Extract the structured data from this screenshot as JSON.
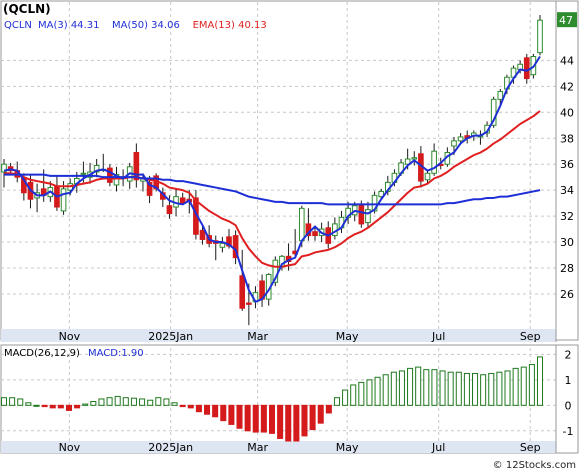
{
  "colors": {
    "up": "#2e8b2e",
    "down": "#d41a1a",
    "ma3": "#1f2fd6",
    "ma50": "#1f2fd6",
    "ema13": "#e02020",
    "legend_text": "#1f2fd6",
    "grid": "#c8c8c8",
    "axis_band": "#dde6f2",
    "macd_up": "#1e7a1e",
    "macd_down": "#d41a1a",
    "last_price_box": "#2e8b2e"
  },
  "chart_data": [
    {
      "type": "candlestick",
      "title": "(QCLN)",
      "legend": [
        {
          "label": "QCLN",
          "color": "#1f2fd6"
        },
        {
          "label": "MA(3)",
          "value": "44.31",
          "color": "#1f2fd6"
        },
        {
          "label": "MA(50)",
          "value": "34.06",
          "color": "#1f2fd6"
        },
        {
          "label": "EMA(13)",
          "value": "40.13",
          "color": "#e02020"
        }
      ],
      "ylim": [
        23.3,
        48.5
      ],
      "y_ticks": [
        26,
        28,
        30,
        32,
        34,
        36,
        38,
        40,
        42,
        44
      ],
      "x_ticks": [
        "Nov",
        "2025Jan",
        "Mar",
        "May",
        "Jul",
        "Sep"
      ],
      "last_price": "47",
      "grid": true,
      "candles": [
        {
          "o": 35.4,
          "h": 36.4,
          "l": 34.2,
          "c": 36.0
        },
        {
          "o": 35.8,
          "h": 36.1,
          "l": 35.3,
          "c": 35.5
        },
        {
          "o": 35.5,
          "h": 36.2,
          "l": 34.6,
          "c": 35.0
        },
        {
          "o": 34.9,
          "h": 35.3,
          "l": 33.2,
          "c": 33.8
        },
        {
          "o": 34.6,
          "h": 35.2,
          "l": 32.6,
          "c": 33.3
        },
        {
          "o": 33.4,
          "h": 34.5,
          "l": 32.3,
          "c": 33.8
        },
        {
          "o": 34.1,
          "h": 35.6,
          "l": 33.1,
          "c": 33.6
        },
        {
          "o": 33.5,
          "h": 34.7,
          "l": 33.1,
          "c": 34.2
        },
        {
          "o": 34.3,
          "h": 35.1,
          "l": 32.4,
          "c": 32.7
        },
        {
          "o": 32.4,
          "h": 34.7,
          "l": 32.1,
          "c": 34.1
        },
        {
          "o": 34.0,
          "h": 34.9,
          "l": 33.6,
          "c": 34.5
        },
        {
          "o": 34.5,
          "h": 35.4,
          "l": 33.8,
          "c": 34.9
        },
        {
          "o": 35.3,
          "h": 36.2,
          "l": 34.6,
          "c": 35.3
        },
        {
          "o": 35.0,
          "h": 36.1,
          "l": 34.5,
          "c": 35.4
        },
        {
          "o": 35.4,
          "h": 36.4,
          "l": 35.0,
          "c": 35.9
        },
        {
          "o": 35.6,
          "h": 36.8,
          "l": 35.4,
          "c": 35.6
        },
        {
          "o": 35.7,
          "h": 36.0,
          "l": 34.3,
          "c": 34.6
        },
        {
          "o": 34.4,
          "h": 35.8,
          "l": 33.9,
          "c": 35.2
        },
        {
          "o": 35.0,
          "h": 35.6,
          "l": 34.3,
          "c": 34.9
        },
        {
          "o": 34.7,
          "h": 36.1,
          "l": 34.1,
          "c": 35.8
        },
        {
          "o": 36.9,
          "h": 37.6,
          "l": 34.2,
          "c": 34.8
        },
        {
          "o": 34.7,
          "h": 35.3,
          "l": 33.9,
          "c": 34.9
        },
        {
          "o": 34.6,
          "h": 35.1,
          "l": 33.0,
          "c": 33.6
        },
        {
          "o": 35.1,
          "h": 35.3,
          "l": 33.9,
          "c": 34.1
        },
        {
          "o": 33.8,
          "h": 34.2,
          "l": 32.7,
          "c": 33.3
        },
        {
          "o": 32.8,
          "h": 33.6,
          "l": 31.8,
          "c": 32.2
        },
        {
          "o": 32.7,
          "h": 34.1,
          "l": 32.0,
          "c": 33.5
        },
        {
          "o": 33.4,
          "h": 33.8,
          "l": 32.9,
          "c": 33.0
        },
        {
          "o": 33.3,
          "h": 34.0,
          "l": 32.2,
          "c": 33.1
        },
        {
          "o": 33.4,
          "h": 34.0,
          "l": 30.2,
          "c": 30.6
        },
        {
          "o": 30.9,
          "h": 31.4,
          "l": 29.8,
          "c": 30.2
        },
        {
          "o": 30.5,
          "h": 31.3,
          "l": 29.6,
          "c": 29.9
        },
        {
          "o": 30.1,
          "h": 30.5,
          "l": 28.6,
          "c": 29.9
        },
        {
          "o": 29.6,
          "h": 30.4,
          "l": 29.2,
          "c": 29.9
        },
        {
          "o": 30.4,
          "h": 31.0,
          "l": 29.5,
          "c": 29.7
        },
        {
          "o": 30.5,
          "h": 30.9,
          "l": 28.3,
          "c": 28.8
        },
        {
          "o": 27.4,
          "h": 29.4,
          "l": 24.7,
          "c": 24.9
        },
        {
          "o": 25.3,
          "h": 26.8,
          "l": 23.6,
          "c": 25.2
        },
        {
          "o": 25.4,
          "h": 26.6,
          "l": 24.9,
          "c": 26.1
        },
        {
          "o": 27.0,
          "h": 27.5,
          "l": 25.0,
          "c": 25.6
        },
        {
          "o": 25.6,
          "h": 27.6,
          "l": 25.1,
          "c": 27.5
        },
        {
          "o": 26.9,
          "h": 28.9,
          "l": 26.6,
          "c": 28.6
        },
        {
          "o": 28.1,
          "h": 29.0,
          "l": 27.8,
          "c": 28.9
        },
        {
          "o": 28.9,
          "h": 29.9,
          "l": 27.8,
          "c": 28.5
        },
        {
          "o": 29.3,
          "h": 31.0,
          "l": 28.9,
          "c": 29.1
        },
        {
          "o": 30.1,
          "h": 32.8,
          "l": 29.6,
          "c": 32.6
        },
        {
          "o": 31.4,
          "h": 32.6,
          "l": 30.1,
          "c": 30.5
        },
        {
          "o": 30.8,
          "h": 31.1,
          "l": 30.1,
          "c": 30.5
        },
        {
          "o": 30.5,
          "h": 31.5,
          "l": 30.0,
          "c": 31.0
        },
        {
          "o": 31.1,
          "h": 31.6,
          "l": 29.5,
          "c": 29.9
        },
        {
          "o": 30.5,
          "h": 31.9,
          "l": 30.2,
          "c": 31.4
        },
        {
          "o": 31.1,
          "h": 32.4,
          "l": 30.7,
          "c": 31.9
        },
        {
          "o": 31.9,
          "h": 33.1,
          "l": 31.4,
          "c": 32.6
        },
        {
          "o": 32.1,
          "h": 33.1,
          "l": 31.6,
          "c": 32.8
        },
        {
          "o": 32.9,
          "h": 33.2,
          "l": 31.1,
          "c": 31.4
        },
        {
          "o": 31.5,
          "h": 33.1,
          "l": 31.1,
          "c": 32.5
        },
        {
          "o": 32.4,
          "h": 33.9,
          "l": 32.2,
          "c": 33.6
        },
        {
          "o": 33.5,
          "h": 34.1,
          "l": 33.2,
          "c": 33.9
        },
        {
          "o": 33.9,
          "h": 35.1,
          "l": 33.6,
          "c": 34.6
        },
        {
          "o": 34.6,
          "h": 35.6,
          "l": 34.3,
          "c": 35.3
        },
        {
          "o": 35.3,
          "h": 36.4,
          "l": 35.1,
          "c": 36.1
        },
        {
          "o": 36.0,
          "h": 37.2,
          "l": 35.6,
          "c": 36.4
        },
        {
          "o": 36.4,
          "h": 37.0,
          "l": 35.9,
          "c": 36.5
        },
        {
          "o": 36.8,
          "h": 37.4,
          "l": 34.2,
          "c": 34.7
        },
        {
          "o": 34.8,
          "h": 35.6,
          "l": 34.5,
          "c": 35.3
        },
        {
          "o": 35.3,
          "h": 37.6,
          "l": 35.1,
          "c": 37.0
        },
        {
          "o": 36.0,
          "h": 36.5,
          "l": 35.6,
          "c": 35.9
        },
        {
          "o": 36.0,
          "h": 37.3,
          "l": 35.8,
          "c": 36.9
        },
        {
          "o": 37.4,
          "h": 38.1,
          "l": 36.7,
          "c": 37.8
        },
        {
          "o": 37.8,
          "h": 38.4,
          "l": 37.5,
          "c": 38.1
        },
        {
          "o": 38.2,
          "h": 38.6,
          "l": 37.6,
          "c": 38.0
        },
        {
          "o": 38.2,
          "h": 38.6,
          "l": 37.8,
          "c": 38.4
        },
        {
          "o": 38.1,
          "h": 38.6,
          "l": 37.5,
          "c": 38.2
        },
        {
          "o": 38.4,
          "h": 39.3,
          "l": 38.1,
          "c": 39.0
        },
        {
          "o": 39.0,
          "h": 41.2,
          "l": 38.8,
          "c": 41.0
        },
        {
          "o": 41.0,
          "h": 41.8,
          "l": 40.5,
          "c": 41.6
        },
        {
          "o": 41.8,
          "h": 42.9,
          "l": 41.4,
          "c": 42.7
        },
        {
          "o": 42.7,
          "h": 43.6,
          "l": 42.2,
          "c": 43.4
        },
        {
          "o": 43.3,
          "h": 44.0,
          "l": 43.0,
          "c": 43.7
        },
        {
          "o": 44.2,
          "h": 44.5,
          "l": 42.2,
          "c": 42.6
        },
        {
          "o": 42.9,
          "h": 44.5,
          "l": 42.6,
          "c": 44.3
        },
        {
          "o": 44.6,
          "h": 47.5,
          "l": 44.4,
          "c": 47.1
        }
      ],
      "ema13": [
        35.3,
        35.3,
        35.2,
        35.0,
        34.8,
        34.7,
        34.6,
        34.5,
        34.3,
        34.3,
        34.3,
        34.4,
        34.5,
        34.6,
        34.8,
        34.9,
        34.9,
        34.9,
        34.9,
        35.0,
        35.0,
        34.9,
        34.8,
        34.7,
        34.5,
        34.2,
        34.1,
        34.0,
        33.8,
        33.2,
        32.8,
        32.4,
        32.1,
        31.8,
        31.6,
        31.3,
        30.3,
        29.5,
        28.9,
        28.4,
        28.2,
        28.1,
        28.1,
        28.2,
        28.3,
        28.9,
        29.0,
        29.2,
        29.3,
        29.4,
        29.6,
        29.9,
        30.3,
        30.6,
        30.8,
        31.1,
        31.5,
        31.9,
        32.3,
        32.8,
        33.3,
        33.8,
        34.2,
        34.3,
        34.5,
        34.9,
        35.1,
        35.4,
        35.8,
        36.1,
        36.4,
        36.7,
        36.9,
        37.2,
        37.6,
        37.9,
        38.3,
        38.7,
        39.1,
        39.4,
        39.7,
        40.1
      ],
      "ma50": [
        35.2,
        35.2,
        35.2,
        35.2,
        35.2,
        35.2,
        35.2,
        35.1,
        35.1,
        35.1,
        35.1,
        35.1,
        35.1,
        35.1,
        35.1,
        35.0,
        35.0,
        35.0,
        35.0,
        35.0,
        35.0,
        34.9,
        34.9,
        34.9,
        34.8,
        34.8,
        34.7,
        34.7,
        34.6,
        34.5,
        34.4,
        34.3,
        34.2,
        34.1,
        34.0,
        33.9,
        33.7,
        33.5,
        33.4,
        33.3,
        33.2,
        33.1,
        33.1,
        33.0,
        33.0,
        33.0,
        33.0,
        33.0,
        33.0,
        32.9,
        32.9,
        32.9,
        32.9,
        32.9,
        32.9,
        32.9,
        32.9,
        32.9,
        32.9,
        32.9,
        32.9,
        32.9,
        32.9,
        32.9,
        32.9,
        32.9,
        32.9,
        33.0,
        33.0,
        33.1,
        33.2,
        33.3,
        33.3,
        33.4,
        33.4,
        33.5,
        33.5,
        33.6,
        33.7,
        33.8,
        33.9,
        34.0
      ],
      "ma3": [
        35.5,
        35.6,
        35.5,
        34.8,
        34.0,
        33.6,
        33.6,
        33.9,
        33.5,
        33.7,
        33.8,
        34.5,
        34.9,
        35.2,
        35.5,
        35.6,
        35.4,
        35.1,
        34.9,
        35.3,
        35.2,
        35.2,
        34.4,
        34.2,
        33.7,
        33.2,
        33.0,
        32.9,
        33.2,
        32.2,
        31.3,
        30.2,
        30.0,
        30.0,
        29.8,
        29.4,
        27.8,
        26.3,
        25.4,
        25.6,
        26.3,
        27.2,
        28.3,
        28.6,
        28.8,
        30.1,
        30.7,
        31.2,
        30.7,
        30.5,
        30.8,
        31.1,
        32.0,
        32.4,
        32.3,
        32.2,
        32.5,
        33.3,
        34.0,
        34.6,
        35.3,
        35.9,
        36.3,
        35.9,
        35.5,
        35.7,
        36.1,
        36.6,
        36.9,
        37.6,
        38.0,
        38.2,
        38.2,
        38.5,
        39.4,
        40.5,
        41.8,
        42.6,
        43.3,
        43.2,
        43.5,
        44.3
      ]
    },
    {
      "type": "bar",
      "title": "MACD(26,12,9)",
      "legend": [
        {
          "label": "MACD:1.90",
          "color": "#1f2fd6"
        }
      ],
      "ylim": [
        -1.4,
        2.25
      ],
      "y_ticks": [
        -1,
        0,
        1,
        2
      ],
      "x_ticks": [
        "Nov",
        "2025Jan",
        "Mar",
        "May",
        "Jul",
        "Sep"
      ],
      "values": [
        0.3,
        0.3,
        0.25,
        0.1,
        0.0,
        -0.05,
        -0.1,
        -0.1,
        -0.2,
        -0.1,
        0.05,
        0.15,
        0.25,
        0.3,
        0.35,
        0.3,
        0.28,
        0.25,
        0.2,
        0.3,
        0.25,
        0.1,
        -0.05,
        -0.1,
        -0.25,
        -0.35,
        -0.45,
        -0.6,
        -0.75,
        -0.9,
        -1.0,
        -1.05,
        -1.05,
        -1.1,
        -1.3,
        -1.4,
        -1.4,
        -1.2,
        -0.95,
        -0.7,
        -0.3,
        0.3,
        0.6,
        0.8,
        0.9,
        1.0,
        1.1,
        1.2,
        1.3,
        1.35,
        1.45,
        1.5,
        1.4,
        1.4,
        1.35,
        1.3,
        1.3,
        1.25,
        1.25,
        1.2,
        1.25,
        1.3,
        1.35,
        1.45,
        1.5,
        1.6,
        1.9
      ],
      "grid": true
    }
  ],
  "watermark": "© 12Stocks.com"
}
